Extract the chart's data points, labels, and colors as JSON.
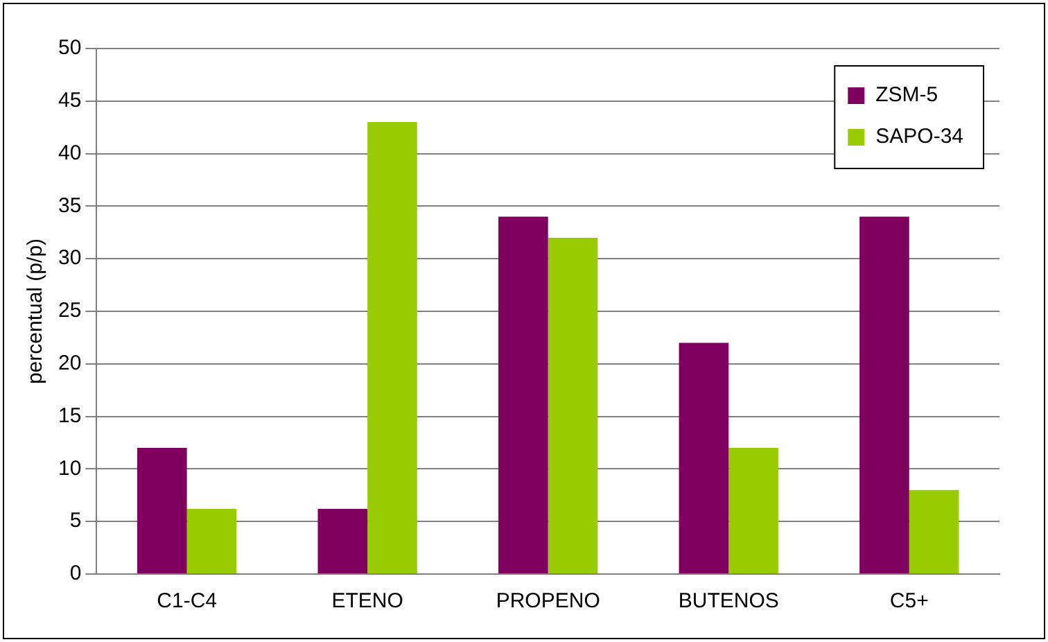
{
  "chart_data": {
    "type": "bar",
    "ylabel": "percentual (p/p)",
    "categories": [
      "C1-C4",
      "ETENO",
      "PROPENO",
      "BUTENOS",
      "C5+"
    ],
    "series": [
      {
        "name": "ZSM-5",
        "color": "#800060",
        "values": [
          12,
          6.2,
          34,
          22,
          34
        ]
      },
      {
        "name": "SAPO-34",
        "color": "#99cc00",
        "values": [
          6.2,
          43,
          32,
          12,
          8
        ]
      }
    ],
    "ylim": [
      0,
      50
    ],
    "yticks": [
      0,
      5,
      10,
      15,
      20,
      25,
      30,
      35,
      40,
      45,
      50
    ],
    "grid": "y",
    "legend": "top right"
  }
}
